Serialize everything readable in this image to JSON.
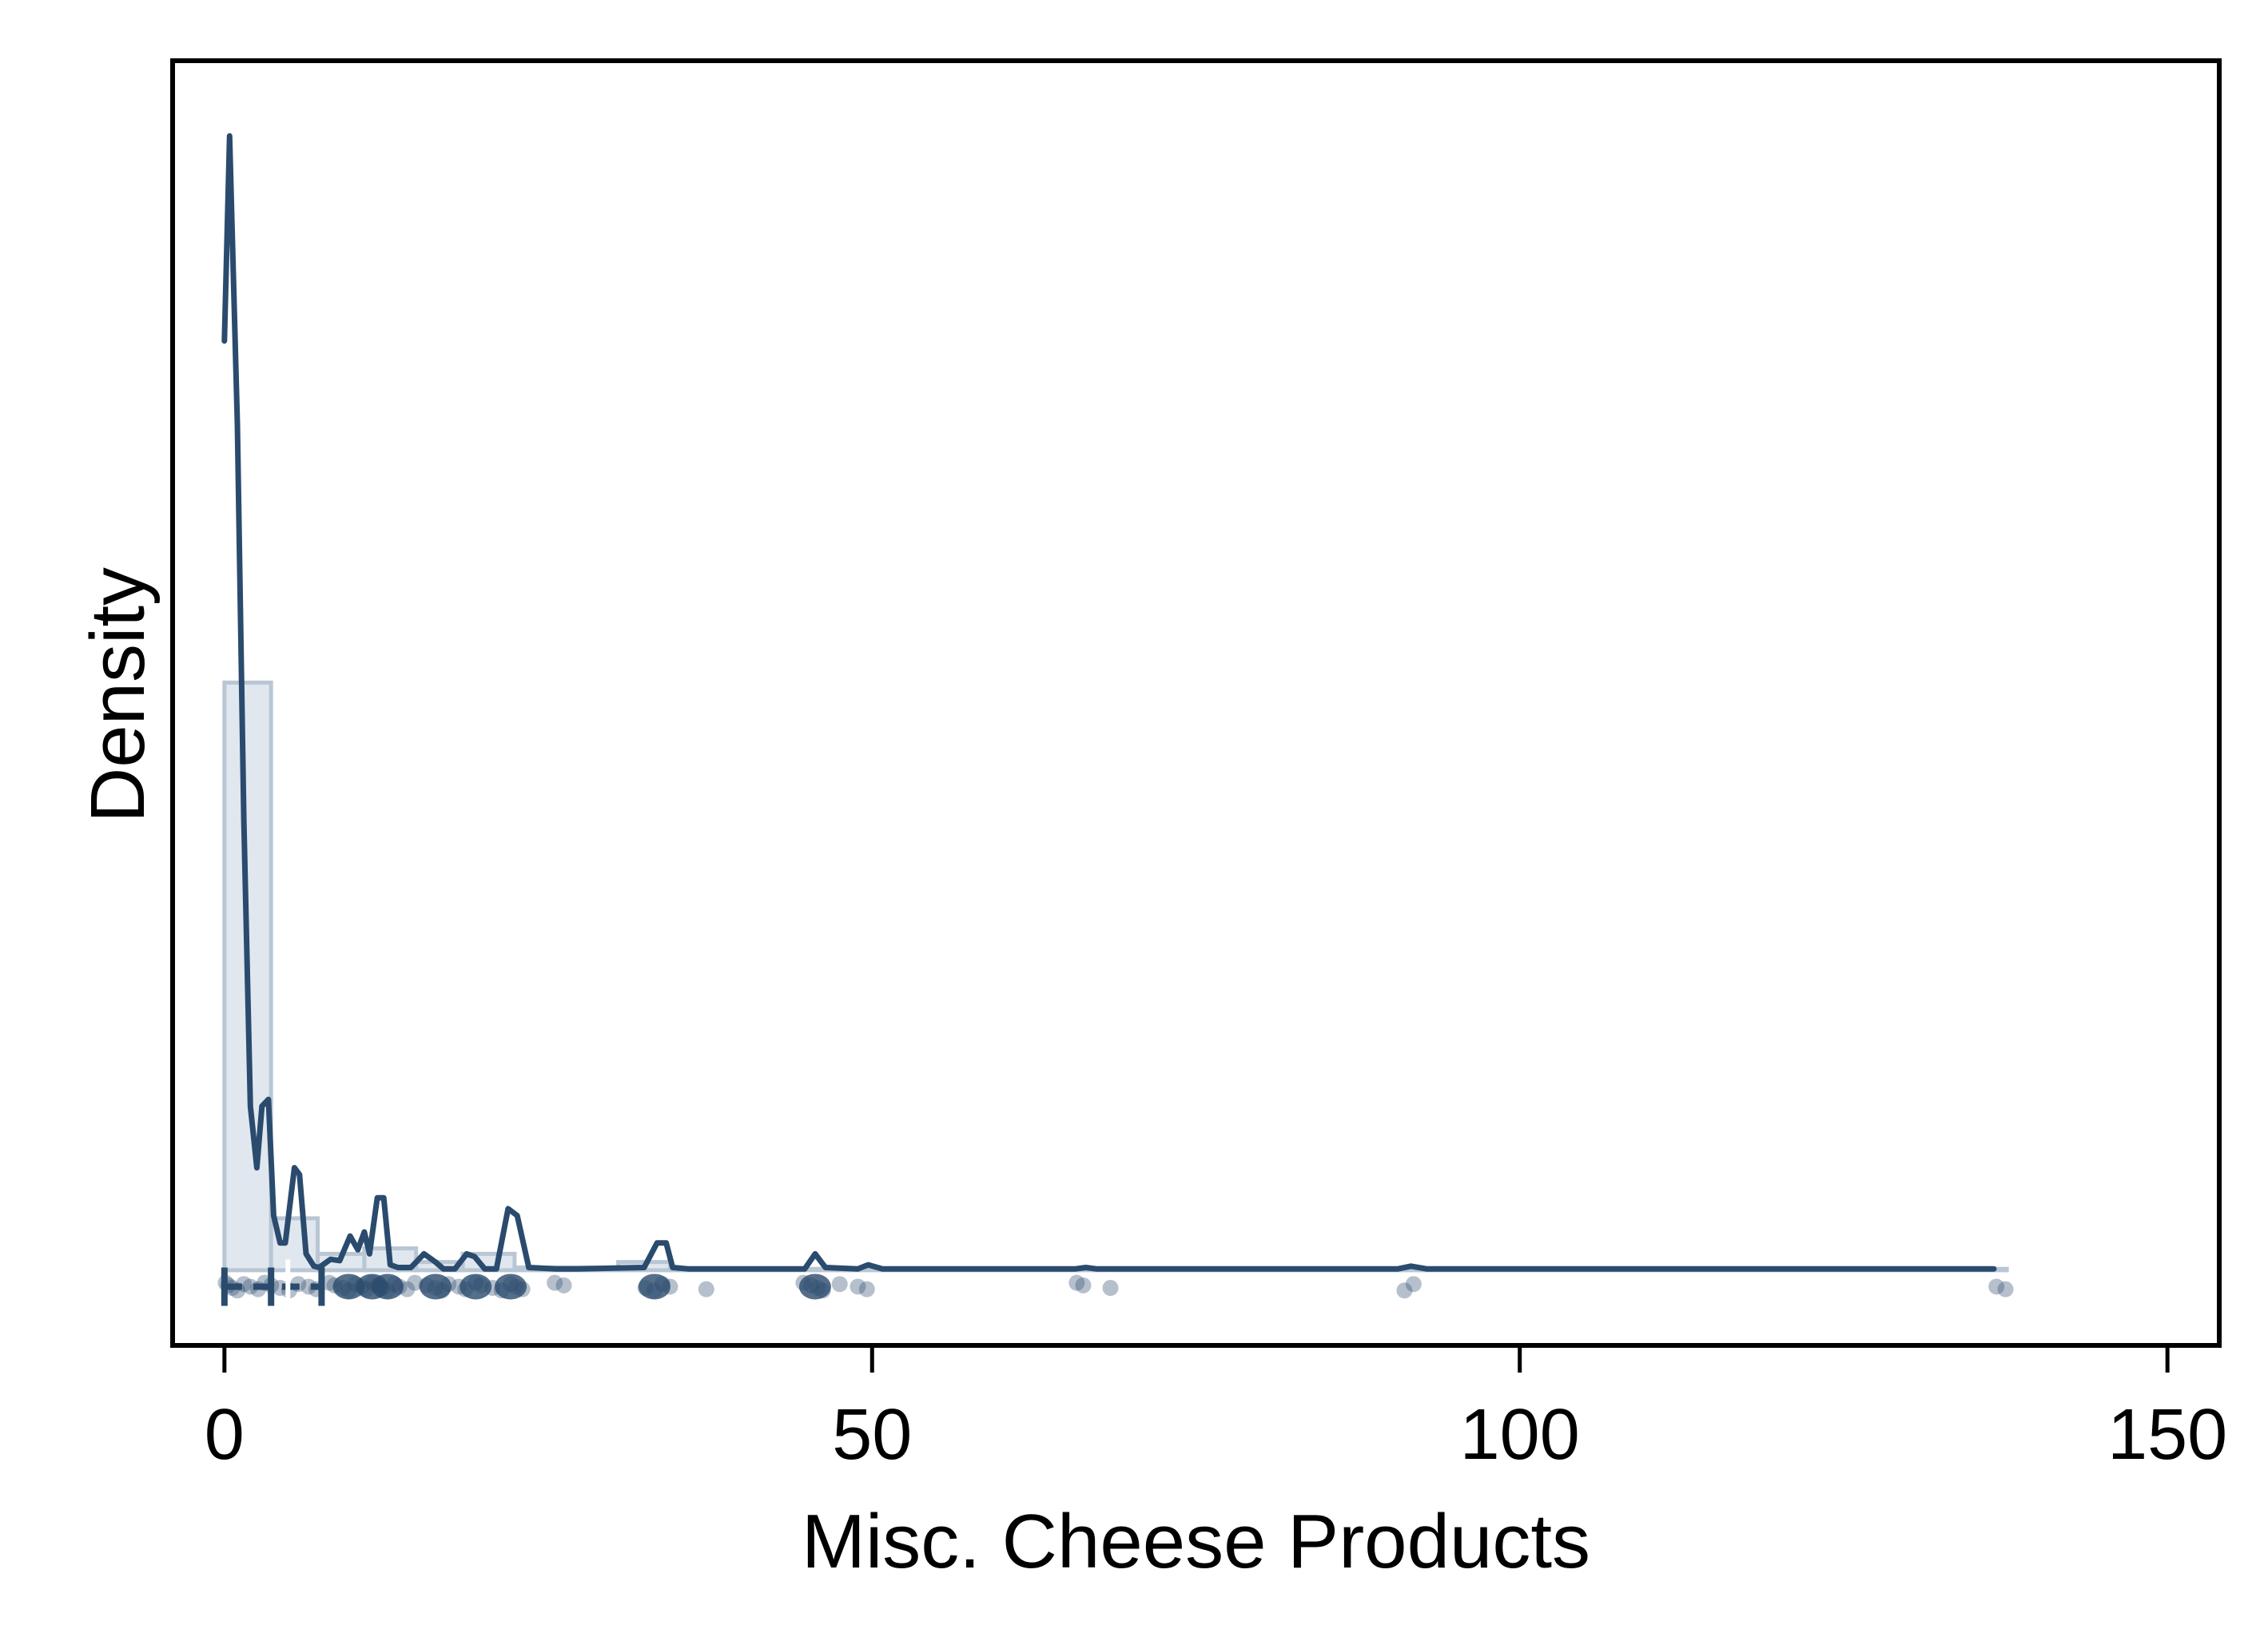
{
  "chart_data": {
    "type": "histogram-density-rug",
    "xlabel": "Misc. Cheese Products",
    "ylabel": "Density",
    "xlim": [
      -4,
      154
    ],
    "ylim": [
      -0.055,
      0.885
    ],
    "x_ticks": [
      0,
      50,
      100,
      150
    ],
    "x_tick_labels": [
      "0",
      "50",
      "100",
      "150"
    ],
    "y_ticks_shown": false,
    "grid": false,
    "legend": "none",
    "colors": {
      "line": "#2a4b6e",
      "hist_fill": "#dde4ec",
      "hist_stroke": "#b9c6d4",
      "rug_point": "#2a4b6e",
      "frame": "#000000"
    },
    "histogram": {
      "bins": [
        {
          "x0": 0,
          "x1": 3.6,
          "density": 0.43
        },
        {
          "x0": 3.6,
          "x1": 7.2,
          "density": 0.038
        },
        {
          "x0": 7.2,
          "x1": 10.8,
          "density": 0.012
        },
        {
          "x0": 10.8,
          "x1": 14.8,
          "density": 0.016
        },
        {
          "x0": 14.8,
          "x1": 18.4,
          "density": 0.006
        },
        {
          "x0": 18.4,
          "x1": 22.4,
          "density": 0.012
        },
        {
          "x0": 22.4,
          "x1": 30.4,
          "density": 0.002
        },
        {
          "x0": 30.4,
          "x1": 34.4,
          "density": 0.006
        },
        {
          "x0": 34.4,
          "x1": 137.6,
          "density": 0.001
        }
      ]
    },
    "density_curve": {
      "x": [
        0,
        0.4,
        1,
        1.5,
        2,
        2.5,
        2.9,
        3.4,
        3.8,
        4.3,
        4.7,
        5.4,
        5.8,
        6.3,
        6.9,
        7.3,
        8.2,
        8.9,
        9.7,
        10.3,
        10.8,
        11.2,
        11.8,
        12.3,
        12.8,
        13.4,
        14.4,
        15.4,
        16.3,
        16.9,
        17.8,
        18.7,
        19.3,
        20.1,
        21,
        21.9,
        22.6,
        23.5,
        25.6,
        27.3,
        32.4,
        33.4,
        34.1,
        34.6,
        35.8,
        39.6,
        44.8,
        45.6,
        46.4,
        48.9,
        49.7,
        50.8,
        65.7,
        66.5,
        67.3,
        90.6,
        91.6,
        92.8,
        136.6
      ],
      "y": [
        0.68,
        0.83,
        0.62,
        0.33,
        0.12,
        0.075,
        0.12,
        0.125,
        0.04,
        0.02,
        0.02,
        0.075,
        0.07,
        0.012,
        0.003,
        0.002,
        0.008,
        0.007,
        0.025,
        0.015,
        0.028,
        0.012,
        0.053,
        0.053,
        0.004,
        0.002,
        0.002,
        0.012,
        0.006,
        0.001,
        0.001,
        0.012,
        0.01,
        0.001,
        0.001,
        0.045,
        0.04,
        0.002,
        0.001,
        0.001,
        0.002,
        0.02,
        0.02,
        0.002,
        0.001,
        0.001,
        0.001,
        0.012,
        0.002,
        0.001,
        0.004,
        0.001,
        0.001,
        0.002,
        0.001,
        0.001,
        0.003,
        0.001,
        0.001
      ]
    },
    "rug_points": [
      0.1,
      0.3,
      0.6,
      1,
      1.5,
      2,
      2.6,
      3.1,
      3.6,
      4.3,
      5,
      5.7,
      6.5,
      7.1,
      8.1,
      8.5,
      9.2,
      9.6,
      10.1,
      10.6,
      11,
      11.4,
      11.8,
      12.2,
      12.6,
      13.1,
      13.5,
      14.1,
      14.7,
      15.6,
      16.3,
      16.8,
      17.3,
      18.1,
      18.6,
      19.4,
      19.8,
      20.7,
      21.4,
      22.1,
      22.5,
      23,
      25.5,
      26.2,
      32.5,
      33.2,
      33.8,
      34.4,
      37.2,
      44.7,
      45.3,
      45.8,
      46.2,
      47.5,
      48.9,
      49.6,
      65.8,
      66.3,
      68.4,
      91.1,
      91.8,
      136.8,
      137.5
    ],
    "boxplot": {
      "q1": 0,
      "median": 1.2,
      "q3": 3.6,
      "whisker_low": 0,
      "whisker_high": 7.5
    }
  }
}
